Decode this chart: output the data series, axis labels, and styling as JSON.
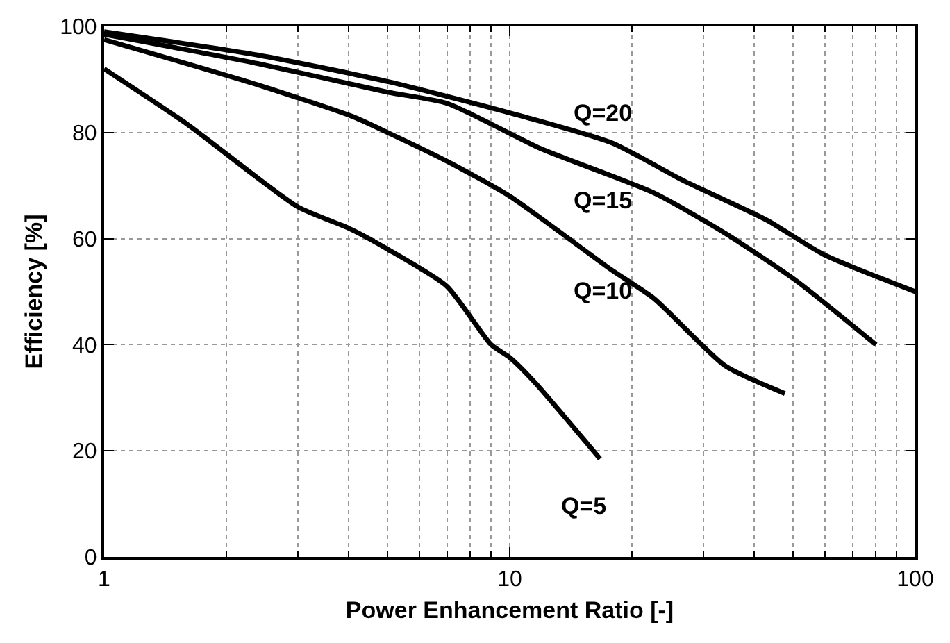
{
  "chart_data": {
    "type": "line",
    "xlabel": "Power Enhancement Ratio [-]",
    "ylabel": "Efficiency [%]",
    "log": "x",
    "xlim": [
      1,
      100
    ],
    "xticks": [
      1,
      10,
      100
    ],
    "ylim": [
      0,
      100
    ],
    "yticks": [
      0,
      20,
      40,
      60,
      80,
      100
    ],
    "grid": true,
    "legend": false,
    "marker": "none",
    "line_style": "solid",
    "series": [
      {
        "name": "Q=20",
        "color": "#000000",
        "x": [
          1,
          2.39,
          5,
          10,
          17.9,
          26.7,
          43,
          59.5,
          100
        ],
        "values": [
          99,
          94.6,
          89.6,
          83.7,
          78,
          71,
          63.5,
          57,
          50
        ]
      },
      {
        "name": "Q=15",
        "color": "#000000",
        "x": [
          1,
          2.39,
          5,
          7,
          11.9,
          22.7,
          34,
          51,
          80
        ],
        "values": [
          98.5,
          93,
          87.6,
          85.5,
          77,
          68.6,
          61,
          52,
          40
        ]
      },
      {
        "name": "Q=10",
        "color": "#000000",
        "x": [
          1,
          2.39,
          4.1,
          5,
          7,
          10,
          17.9,
          22.7,
          34,
          47.7
        ],
        "values": [
          97.5,
          89,
          83,
          80,
          74.6,
          68,
          54,
          48.7,
          36,
          30.8
        ]
      },
      {
        "name": "Q=5",
        "color": "#000000",
        "x": [
          1,
          1.6,
          3,
          4,
          5,
          7,
          9,
          10,
          11.5,
          16.7
        ],
        "values": [
          92,
          81.6,
          66,
          62,
          58,
          51,
          40,
          37.6,
          33,
          18.5
        ]
      }
    ]
  }
}
